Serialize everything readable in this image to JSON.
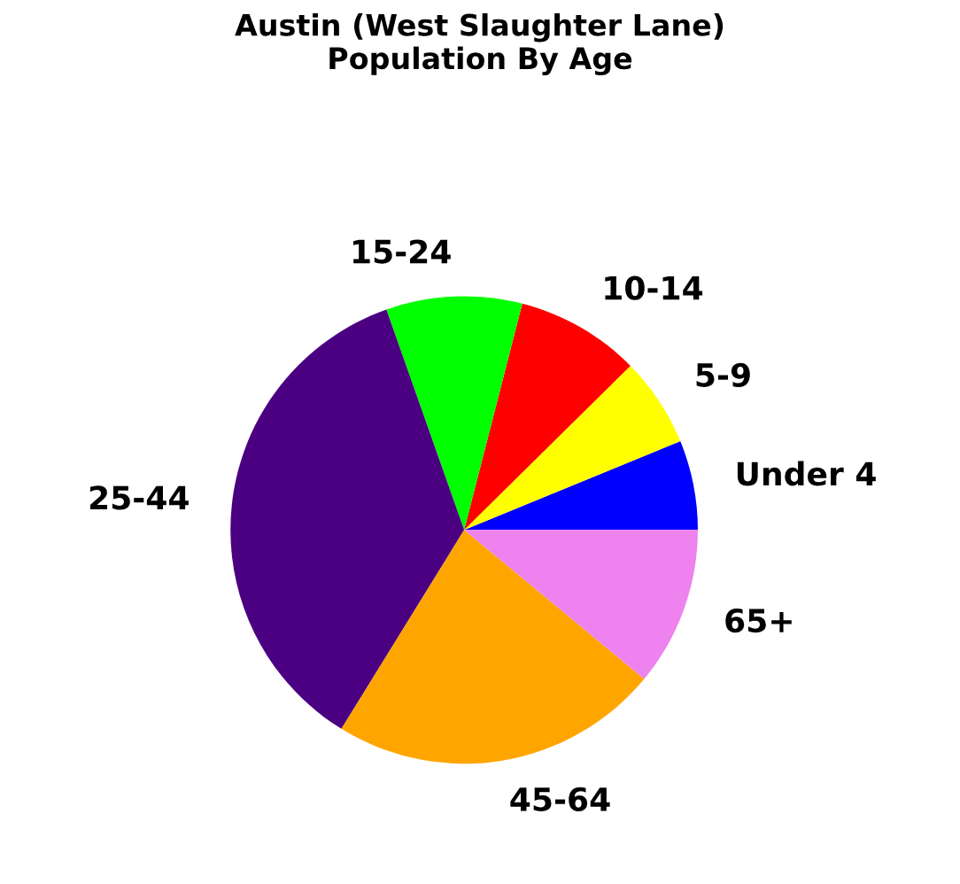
{
  "chart_data": {
    "type": "pie",
    "title": "Austin (West Slaughter Lane)\nPopulation By Age",
    "categories": [
      "Under 4",
      "5-9",
      "10-14",
      "15-24",
      "25-44",
      "45-64",
      "65+"
    ],
    "values": [
      6.2,
      6.2,
      8.6,
      9.4,
      35.8,
      22.8,
      11.0
    ],
    "colors": [
      "#0000ff",
      "#ffff00",
      "#ff0000",
      "#00ff00",
      "#4b0082",
      "#ffa500",
      "#ee82ee"
    ]
  }
}
